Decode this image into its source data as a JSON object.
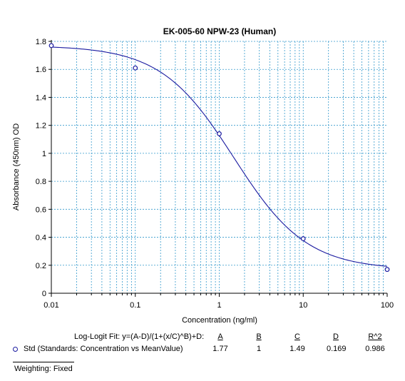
{
  "chart_data": {
    "type": "scatter",
    "title": "EK-005-60 NPW-23 (Human)",
    "xlabel": "Concentration (ng/ml)",
    "ylabel": "Absorbance (450nm) OD",
    "x_scale": "log",
    "xlim": [
      0.01,
      100
    ],
    "ylim": [
      0,
      1.8
    ],
    "x_ticks": [
      "0.01",
      "0.1",
      "1",
      "10",
      "100"
    ],
    "y_ticks": [
      "0",
      "0.2",
      "0.4",
      "0.6",
      "0.8",
      "1",
      "1.2",
      "1.4",
      "1.6",
      "1.8"
    ],
    "grid": true,
    "series": [
      {
        "name": "Std (Standards: Concentration vs MeanValue)",
        "x": [
          0.01,
          0.1,
          1,
          10,
          100
        ],
        "y": [
          1.77,
          1.61,
          1.14,
          0.39,
          0.17
        ]
      }
    ],
    "fit": {
      "model": "Log-Logit Fit: y=(A-D)/(1+(x/C)^B)+D:",
      "A": 1.77,
      "B": 1,
      "C": 1.49,
      "D": 0.169,
      "R2": 0.986
    }
  },
  "legend": {
    "fit_label": "Log-Logit Fit: y=(A-D)/(1+(x/C)^B)+D:",
    "headers": [
      "A",
      "B",
      "C",
      "D",
      "R^2"
    ],
    "std_label": "Std (Standards: Concentration vs MeanValue)",
    "values": [
      "1.77",
      "1",
      "1.49",
      "0.169",
      "0.986"
    ],
    "weighting": "Weighting: Fixed"
  },
  "colors": {
    "grid": "#3399cc",
    "curve": "#1a1aa0",
    "axis": "#000000"
  }
}
